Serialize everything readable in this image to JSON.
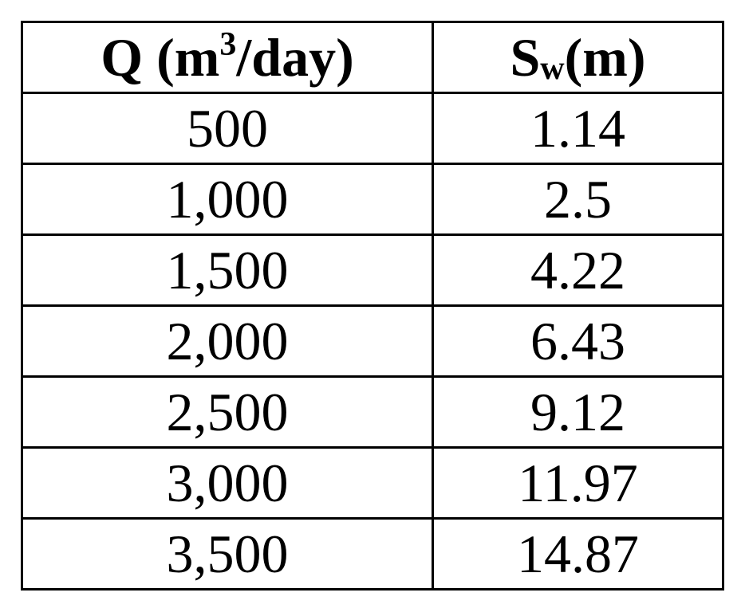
{
  "table": {
    "header": {
      "col1_base": "Q (m",
      "col1_sup": "3",
      "col1_tail": "/day)",
      "col2_base": "S",
      "col2_sub": "w",
      "col2_tail": "(m)"
    },
    "rows": [
      {
        "q": "500",
        "sw": "1.14"
      },
      {
        "q": "1,000",
        "sw": "2.5"
      },
      {
        "q": "1,500",
        "sw": "4.22"
      },
      {
        "q": "2,000",
        "sw": "6.43"
      },
      {
        "q": "2,500",
        "sw": "9.12"
      },
      {
        "q": "3,000",
        "sw": "11.97"
      },
      {
        "q": "3,500",
        "sw": "14.87"
      }
    ]
  }
}
